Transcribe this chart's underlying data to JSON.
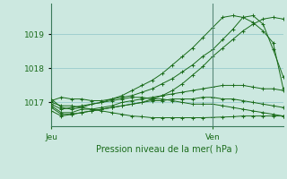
{
  "background_color": "#cce8e0",
  "plot_bg_color": "#cce8e0",
  "grid_color": "#99cccc",
  "line_color": "#1a6b1a",
  "xlabel": "Pression niveau de la mer( hPa )",
  "xtick_labels": [
    "Jeu",
    "Ven"
  ],
  "xtick_positions": [
    0,
    16
  ],
  "yticks": [
    1017,
    1018,
    1019
  ],
  "ylim": [
    1016.3,
    1019.9
  ],
  "xlim": [
    0,
    23
  ],
  "vline_x": 16,
  "series": [
    [
      1016.9,
      1016.7,
      1016.7,
      1016.8,
      1016.8,
      1016.85,
      1016.9,
      1017.0,
      1017.05,
      1017.1,
      1017.15,
      1017.2,
      1017.25,
      1017.3,
      1017.35,
      1017.4,
      1017.45,
      1017.5,
      1017.5,
      1017.5,
      1017.45,
      1017.4,
      1017.4,
      1017.35
    ],
    [
      1016.75,
      1016.6,
      1016.65,
      1016.7,
      1016.75,
      1016.8,
      1016.85,
      1016.9,
      1016.95,
      1017.0,
      1017.05,
      1017.05,
      1017.1,
      1017.1,
      1017.1,
      1017.15,
      1017.15,
      1017.1,
      1017.1,
      1017.05,
      1017.0,
      1016.95,
      1016.9,
      1016.85
    ],
    [
      1016.95,
      1016.8,
      1016.85,
      1016.9,
      1016.95,
      1017.0,
      1017.05,
      1017.1,
      1017.15,
      1017.15,
      1017.1,
      1017.1,
      1017.05,
      1017.0,
      1016.95,
      1016.95,
      1016.95,
      1016.9,
      1016.85,
      1016.8,
      1016.75,
      1016.7,
      1016.65,
      1016.6
    ],
    [
      1017.05,
      1017.15,
      1017.1,
      1017.1,
      1017.05,
      1017.05,
      1017.1,
      1017.15,
      1017.2,
      1017.3,
      1017.4,
      1017.55,
      1017.7,
      1017.9,
      1018.1,
      1018.35,
      1018.55,
      1018.85,
      1019.15,
      1019.5,
      1019.55,
      1019.3,
      1018.55,
      1017.75
    ],
    [
      1017.1,
      1016.85,
      1016.8,
      1016.85,
      1016.95,
      1017.0,
      1017.1,
      1017.2,
      1017.35,
      1017.5,
      1017.65,
      1017.85,
      1018.1,
      1018.35,
      1018.6,
      1018.9,
      1019.2,
      1019.5,
      1019.55,
      1019.5,
      1019.35,
      1019.1,
      1018.75,
      1017.4
    ],
    [
      1016.85,
      1016.65,
      1016.65,
      1016.7,
      1016.75,
      1016.8,
      1016.85,
      1016.9,
      1016.95,
      1017.0,
      1017.1,
      1017.2,
      1017.35,
      1017.55,
      1017.8,
      1018.05,
      1018.35,
      1018.6,
      1018.85,
      1019.1,
      1019.3,
      1019.45,
      1019.5,
      1019.45
    ],
    [
      1017.0,
      1016.9,
      1016.9,
      1016.85,
      1016.8,
      1016.75,
      1016.7,
      1016.65,
      1016.6,
      1016.58,
      1016.55,
      1016.55,
      1016.55,
      1016.55,
      1016.55,
      1016.55,
      1016.56,
      1016.57,
      1016.58,
      1016.6,
      1016.6,
      1016.6,
      1016.6,
      1016.6
    ]
  ]
}
